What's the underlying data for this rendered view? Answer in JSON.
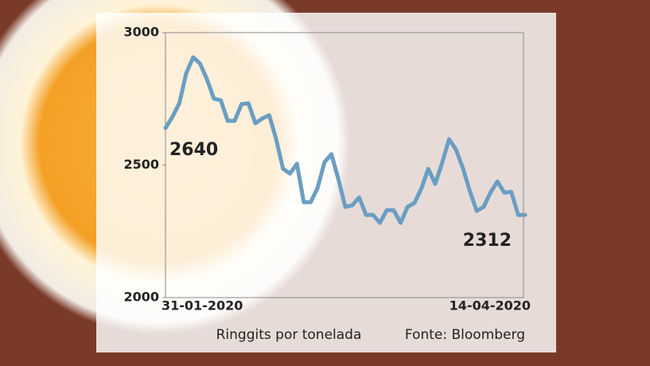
{
  "chart_data": {
    "type": "line",
    "ylabel": "Ringgits por tonelada",
    "source": "Fonte: Bloomberg",
    "categories": [
      "31-01-2020",
      null,
      null,
      null,
      null,
      null,
      null,
      null,
      null,
      null,
      null,
      null,
      null,
      null,
      null,
      null,
      null,
      null,
      null,
      null,
      null,
      null,
      null,
      null,
      null,
      null,
      null,
      null,
      null,
      null,
      null,
      null,
      null,
      null,
      null,
      null,
      null,
      null,
      null,
      null,
      null,
      null,
      null,
      null,
      null,
      null,
      null,
      null,
      null,
      null,
      null,
      null,
      "14-04-2020"
    ],
    "values": [
      2640,
      2682,
      2733,
      2847,
      2907,
      2883,
      2823,
      2751,
      2745,
      2667,
      2667,
      2730,
      2733,
      2658,
      2676,
      2688,
      2598,
      2486,
      2468,
      2505,
      2360,
      2360,
      2414,
      2511,
      2541,
      2447,
      2342,
      2348,
      2378,
      2312,
      2312,
      2282,
      2330,
      2330,
      2282,
      2342,
      2357,
      2411,
      2486,
      2429,
      2508,
      2598,
      2559,
      2489,
      2402,
      2327,
      2342,
      2396,
      2438,
      2396,
      2399,
      2312,
      2312
    ],
    "color": "#6a9ec2",
    "ylim": [
      2000,
      3000
    ],
    "yticks": [
      2000,
      2500,
      3000
    ],
    "grid": false
  }
}
